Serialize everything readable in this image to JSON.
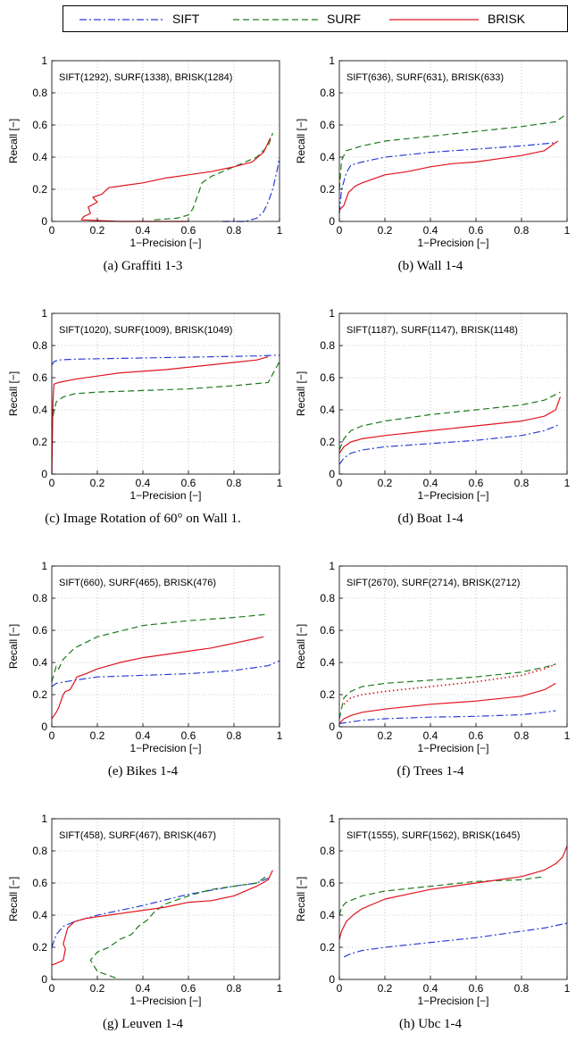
{
  "legend": {
    "entries": [
      {
        "name": "SIFT",
        "color": "#2a3fd6",
        "style": "dashdot"
      },
      {
        "name": "SURF",
        "color": "#1c7a1c",
        "style": "dashed"
      },
      {
        "name": "BRISK",
        "color": "#e0141e",
        "style": "solid"
      }
    ]
  },
  "chart_data": [
    {
      "type": "line",
      "caption": "(a) Graffiti 1-3",
      "annotation": "SIFT(1292), SURF(1338), BRISK(1284)",
      "xlabel": "1−Precision [−]",
      "ylabel": "Recall [−]",
      "xlim": [
        0,
        1
      ],
      "ylim": [
        0,
        1
      ],
      "grid": true,
      "xticks": [
        "0",
        "0.2",
        "0.4",
        "0.6",
        "0.8",
        "1"
      ],
      "yticks": [
        "0",
        "0.2",
        "0.4",
        "0.6",
        "0.8",
        "1"
      ],
      "series": [
        {
          "name": "SIFT",
          "x": [
            0.75,
            0.85,
            0.9,
            0.93,
            0.95,
            0.97,
            0.99,
            1.0
          ],
          "y": [
            0.0,
            0.0,
            0.02,
            0.06,
            0.12,
            0.2,
            0.32,
            0.4
          ]
        },
        {
          "name": "SURF",
          "x": [
            0.45,
            0.55,
            0.6,
            0.62,
            0.64,
            0.66,
            0.7,
            0.8,
            0.9,
            0.95,
            0.97
          ],
          "y": [
            0.01,
            0.02,
            0.04,
            0.08,
            0.16,
            0.24,
            0.28,
            0.34,
            0.4,
            0.47,
            0.55
          ]
        },
        {
          "name": "BRISK",
          "x": [
            0.6,
            0.3,
            0.13,
            0.14,
            0.17,
            0.16,
            0.2,
            0.18,
            0.22,
            0.25,
            0.3,
            0.4,
            0.5,
            0.6,
            0.7,
            0.8,
            0.88,
            0.93,
            0.96
          ],
          "y": [
            0.0,
            0.0,
            0.01,
            0.03,
            0.05,
            0.09,
            0.12,
            0.15,
            0.17,
            0.21,
            0.22,
            0.24,
            0.27,
            0.29,
            0.31,
            0.34,
            0.37,
            0.43,
            0.52
          ]
        }
      ]
    },
    {
      "type": "line",
      "caption": "(b) Wall 1-4",
      "annotation": "SIFT(636), SURF(631), BRISK(633)",
      "xlabel": "1−Precision [−]",
      "ylabel": "Recall [−]",
      "xlim": [
        0,
        1
      ],
      "ylim": [
        0,
        1
      ],
      "grid": true,
      "xticks": [
        "0",
        "0.2",
        "0.4",
        "0.6",
        "0.8",
        "1"
      ],
      "yticks": [
        "0",
        "0.2",
        "0.4",
        "0.6",
        "0.8",
        "1"
      ],
      "series": [
        {
          "name": "SIFT",
          "x": [
            0.0,
            0.01,
            0.03,
            0.05,
            0.1,
            0.2,
            0.4,
            0.6,
            0.8,
            0.95
          ],
          "y": [
            0.05,
            0.2,
            0.3,
            0.35,
            0.37,
            0.4,
            0.43,
            0.45,
            0.47,
            0.49
          ]
        },
        {
          "name": "SURF",
          "x": [
            0.0,
            0.01,
            0.03,
            0.1,
            0.2,
            0.4,
            0.6,
            0.8,
            0.95,
            0.99
          ],
          "y": [
            0.2,
            0.38,
            0.44,
            0.47,
            0.5,
            0.53,
            0.56,
            0.59,
            0.62,
            0.66
          ]
        },
        {
          "name": "BRISK",
          "x": [
            0.0,
            0.02,
            0.04,
            0.07,
            0.1,
            0.2,
            0.3,
            0.4,
            0.5,
            0.6,
            0.7,
            0.8,
            0.9,
            0.96
          ],
          "y": [
            0.07,
            0.1,
            0.18,
            0.22,
            0.24,
            0.29,
            0.31,
            0.34,
            0.36,
            0.37,
            0.39,
            0.41,
            0.44,
            0.5
          ]
        }
      ]
    },
    {
      "type": "line",
      "caption": "(c) Image Rotation of 60° on Wall 1.",
      "annotation": "SIFT(1020), SURF(1009), BRISK(1049)",
      "xlabel": "1−Precision [−]",
      "ylabel": "Recall [−]",
      "xlim": [
        0,
        1
      ],
      "ylim": [
        0,
        1
      ],
      "grid": true,
      "xticks": [
        "0",
        "0.2",
        "0.4",
        "0.6",
        "0.8",
        "1"
      ],
      "yticks": [
        "0",
        "0.2",
        "0.4",
        "0.6",
        "0.8",
        "1"
      ],
      "series": [
        {
          "name": "SIFT",
          "x": [
            0.0,
            0.01,
            0.03,
            0.1,
            0.3,
            0.5,
            0.7,
            0.9,
            1.0
          ],
          "y": [
            0.68,
            0.7,
            0.71,
            0.715,
            0.72,
            0.725,
            0.73,
            0.735,
            0.74
          ]
        },
        {
          "name": "SURF",
          "x": [
            0.0,
            0.01,
            0.02,
            0.05,
            0.1,
            0.2,
            0.4,
            0.6,
            0.8,
            0.95,
            1.0
          ],
          "y": [
            0.3,
            0.4,
            0.45,
            0.48,
            0.5,
            0.51,
            0.52,
            0.53,
            0.55,
            0.57,
            0.7
          ]
        },
        {
          "name": "BRISK",
          "x": [
            0.0,
            0.005,
            0.01,
            0.03,
            0.1,
            0.2,
            0.3,
            0.5,
            0.7,
            0.9,
            0.95
          ],
          "y": [
            0.0,
            0.45,
            0.56,
            0.57,
            0.59,
            0.61,
            0.63,
            0.65,
            0.68,
            0.71,
            0.73
          ]
        }
      ]
    },
    {
      "type": "line",
      "caption": "(d) Boat 1-4",
      "annotation": "SIFT(1187), SURF(1147), BRISK(1148)",
      "xlabel": "1−Precision [−]",
      "ylabel": "Recall [−]",
      "xlim": [
        0,
        1
      ],
      "ylim": [
        0,
        1
      ],
      "grid": true,
      "xticks": [
        "0",
        "0.2",
        "0.4",
        "0.6",
        "0.8",
        "1"
      ],
      "yticks": [
        "0",
        "0.2",
        "0.4",
        "0.6",
        "0.8",
        "1"
      ],
      "series": [
        {
          "name": "SIFT",
          "x": [
            0.0,
            0.02,
            0.05,
            0.1,
            0.2,
            0.4,
            0.6,
            0.8,
            0.9,
            0.97
          ],
          "y": [
            0.06,
            0.1,
            0.13,
            0.15,
            0.17,
            0.19,
            0.21,
            0.24,
            0.27,
            0.31
          ]
        },
        {
          "name": "SURF",
          "x": [
            0.0,
            0.02,
            0.05,
            0.1,
            0.2,
            0.4,
            0.6,
            0.8,
            0.9,
            0.97
          ],
          "y": [
            0.15,
            0.22,
            0.27,
            0.3,
            0.33,
            0.37,
            0.4,
            0.43,
            0.46,
            0.51
          ]
        },
        {
          "name": "BRISK",
          "x": [
            0.0,
            0.02,
            0.05,
            0.1,
            0.2,
            0.4,
            0.6,
            0.8,
            0.9,
            0.95,
            0.97
          ],
          "y": [
            0.13,
            0.17,
            0.2,
            0.22,
            0.24,
            0.27,
            0.3,
            0.33,
            0.36,
            0.4,
            0.48
          ]
        }
      ]
    },
    {
      "type": "line",
      "caption": "(e) Bikes 1-4",
      "annotation": "SIFT(660), SURF(465), BRISK(476)",
      "xlabel": "1−Precision [−]",
      "ylabel": "Recall [−]",
      "xlim": [
        0,
        1
      ],
      "ylim": [
        0,
        1
      ],
      "grid": true,
      "xticks": [
        "0",
        "0.2",
        "0.4",
        "0.6",
        "0.8",
        "1"
      ],
      "yticks": [
        "0",
        "0.2",
        "0.4",
        "0.6",
        "0.8",
        "1"
      ],
      "series": [
        {
          "name": "SIFT",
          "x": [
            0.0,
            0.02,
            0.1,
            0.2,
            0.4,
            0.6,
            0.8,
            0.95,
            1.0
          ],
          "y": [
            0.25,
            0.27,
            0.29,
            0.31,
            0.32,
            0.33,
            0.35,
            0.38,
            0.41
          ]
        },
        {
          "name": "SURF",
          "x": [
            0.0,
            0.01,
            0.02,
            0.03,
            0.05,
            0.1,
            0.2,
            0.4,
            0.6,
            0.8,
            0.95
          ],
          "y": [
            0.28,
            0.33,
            0.38,
            0.36,
            0.42,
            0.49,
            0.56,
            0.63,
            0.66,
            0.68,
            0.7
          ]
        },
        {
          "name": "BRISK",
          "x": [
            0.0,
            0.01,
            0.02,
            0.03,
            0.04,
            0.05,
            0.06,
            0.08,
            0.1,
            0.11,
            0.15,
            0.2,
            0.3,
            0.4,
            0.5,
            0.6,
            0.7,
            0.8,
            0.9,
            0.93
          ],
          "y": [
            0.05,
            0.07,
            0.09,
            0.12,
            0.16,
            0.2,
            0.22,
            0.23,
            0.28,
            0.31,
            0.33,
            0.36,
            0.4,
            0.43,
            0.45,
            0.47,
            0.49,
            0.52,
            0.55,
            0.56
          ]
        }
      ]
    },
    {
      "type": "line",
      "caption": "(f) Trees 1-4",
      "annotation": "SIFT(2670), SURF(2714), BRISK(2712)",
      "xlabel": "1−Precision [−]",
      "ylabel": "Recall [−]",
      "xlim": [
        0,
        1
      ],
      "ylim": [
        0,
        1
      ],
      "grid": true,
      "xticks": [
        "0",
        "0.2",
        "0.4",
        "0.6",
        "0.8",
        "1"
      ],
      "yticks": [
        "0",
        "0.2",
        "0.4",
        "0.6",
        "0.8",
        "1"
      ],
      "series": [
        {
          "name": "SIFT",
          "x": [
            0.0,
            0.05,
            0.1,
            0.2,
            0.4,
            0.6,
            0.8,
            0.9,
            0.95
          ],
          "y": [
            0.02,
            0.03,
            0.04,
            0.05,
            0.06,
            0.065,
            0.075,
            0.09,
            0.1
          ]
        },
        {
          "name": "SURF",
          "x": [
            0.0,
            0.02,
            0.05,
            0.1,
            0.2,
            0.4,
            0.6,
            0.8,
            0.9,
            0.95
          ],
          "y": [
            0.05,
            0.18,
            0.22,
            0.25,
            0.27,
            0.29,
            0.31,
            0.34,
            0.37,
            0.39
          ]
        },
        {
          "name": "BRISK",
          "x": [
            0.0,
            0.02,
            0.05,
            0.1,
            0.2,
            0.4,
            0.6,
            0.8,
            0.9,
            0.95
          ],
          "y": [
            0.02,
            0.05,
            0.07,
            0.09,
            0.11,
            0.14,
            0.16,
            0.19,
            0.23,
            0.27
          ]
        }
      ],
      "extra_series_unlabeled": [
        {
          "style": "dotted",
          "color": "#e0141e",
          "x": [
            0.02,
            0.05,
            0.1,
            0.2,
            0.4,
            0.6,
            0.8,
            0.9,
            0.95
          ],
          "y": [
            0.14,
            0.18,
            0.2,
            0.22,
            0.25,
            0.28,
            0.32,
            0.36,
            0.39
          ]
        }
      ]
    },
    {
      "type": "line",
      "caption": "(g) Leuven 1-4",
      "annotation": "SIFT(458), SURF(467), BRISK(467)",
      "xlabel": "1−Precision [−]",
      "ylabel": "Recall [−]",
      "xlim": [
        0,
        1
      ],
      "ylim": [
        0,
        1
      ],
      "grid": true,
      "xticks": [
        "0",
        "0.2",
        "0.4",
        "0.6",
        "0.8",
        "1"
      ],
      "yticks": [
        "0",
        "0.2",
        "0.4",
        "0.6",
        "0.8",
        "1"
      ],
      "series": [
        {
          "name": "SIFT",
          "x": [
            0.0,
            0.02,
            0.05,
            0.1,
            0.2,
            0.4,
            0.6,
            0.8,
            0.9,
            0.95
          ],
          "y": [
            0.2,
            0.28,
            0.33,
            0.36,
            0.4,
            0.46,
            0.53,
            0.58,
            0.6,
            0.63
          ]
        },
        {
          "name": "SURF",
          "x": [
            0.28,
            0.2,
            0.17,
            0.2,
            0.25,
            0.3,
            0.35,
            0.38,
            0.42,
            0.45,
            0.5,
            0.6,
            0.7,
            0.8,
            0.9,
            0.95
          ],
          "y": [
            0.01,
            0.05,
            0.12,
            0.17,
            0.2,
            0.25,
            0.28,
            0.33,
            0.37,
            0.42,
            0.47,
            0.52,
            0.56,
            0.58,
            0.6,
            0.65
          ]
        },
        {
          "name": "BRISK",
          "x": [
            0.0,
            0.02,
            0.05,
            0.06,
            0.05,
            0.07,
            0.1,
            0.15,
            0.2,
            0.3,
            0.4,
            0.5,
            0.6,
            0.7,
            0.8,
            0.9,
            0.95,
            0.97
          ],
          "y": [
            0.09,
            0.1,
            0.12,
            0.19,
            0.22,
            0.32,
            0.36,
            0.38,
            0.39,
            0.41,
            0.43,
            0.45,
            0.48,
            0.49,
            0.52,
            0.58,
            0.62,
            0.68
          ]
        }
      ]
    },
    {
      "type": "line",
      "caption": "(h) Ubc 1-4",
      "annotation": "SIFT(1555), SURF(1562), BRISK(1645)",
      "xlabel": "1−Precision [−]",
      "ylabel": "Recall [−]",
      "xlim": [
        0,
        1
      ],
      "ylim": [
        0,
        1
      ],
      "grid": true,
      "xticks": [
        "0",
        "0.2",
        "0.4",
        "0.6",
        "0.8",
        "1"
      ],
      "yticks": [
        "0",
        "0.2",
        "0.4",
        "0.6",
        "0.8",
        "1"
      ],
      "series": [
        {
          "name": "SIFT",
          "x": [
            0.02,
            0.05,
            0.1,
            0.2,
            0.4,
            0.6,
            0.8,
            0.9,
            1.0
          ],
          "y": [
            0.14,
            0.16,
            0.18,
            0.2,
            0.23,
            0.26,
            0.3,
            0.32,
            0.35
          ]
        },
        {
          "name": "SURF",
          "x": [
            0.0,
            0.01,
            0.03,
            0.1,
            0.2,
            0.4,
            0.6,
            0.8,
            0.9
          ],
          "y": [
            0.4,
            0.45,
            0.48,
            0.52,
            0.55,
            0.58,
            0.61,
            0.62,
            0.64
          ]
        },
        {
          "name": "BRISK",
          "x": [
            0.0,
            0.01,
            0.03,
            0.06,
            0.1,
            0.2,
            0.3,
            0.4,
            0.5,
            0.6,
            0.7,
            0.8,
            0.9,
            0.95,
            0.98,
            1.0
          ],
          "y": [
            0.25,
            0.3,
            0.36,
            0.4,
            0.44,
            0.5,
            0.53,
            0.56,
            0.58,
            0.6,
            0.62,
            0.64,
            0.68,
            0.72,
            0.76,
            0.83
          ]
        }
      ]
    }
  ]
}
